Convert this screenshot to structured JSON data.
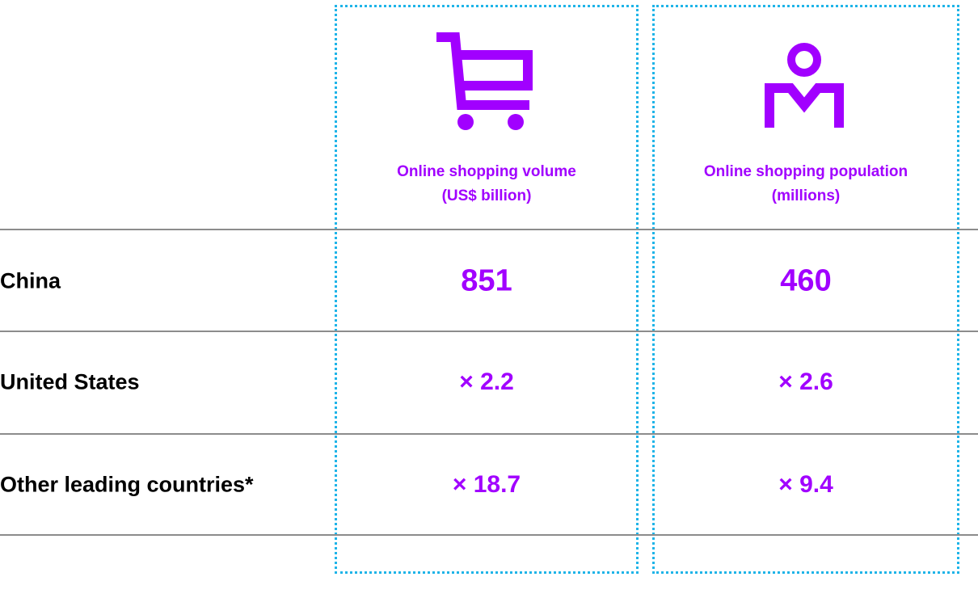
{
  "table": {
    "columns": [
      {
        "lines": [
          "Online shopping volume",
          "(US$ billion)"
        ]
      },
      {
        "lines": [
          "Online shopping population",
          "(millions)"
        ]
      }
    ],
    "rows": [
      [
        "China",
        "851",
        "460"
      ],
      [
        "United States",
        "× 2.2",
        "× 2.6"
      ],
      [
        "Other leading countries*",
        "× 18.7",
        "× 9.4"
      ]
    ]
  }
}
